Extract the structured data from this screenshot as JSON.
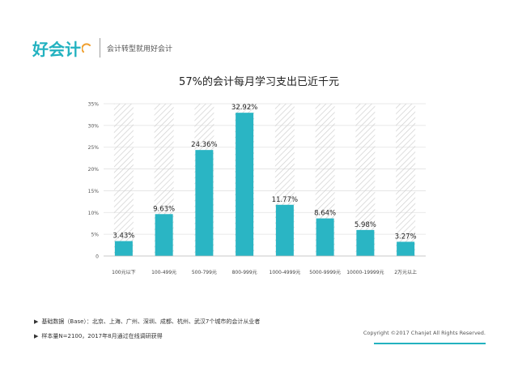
{
  "header": {
    "logo_text": "好会计",
    "slogan": "会计转型就用好会计"
  },
  "chart_data": {
    "type": "bar",
    "title": "57%的会计每月学习支出已近千元",
    "categories": [
      "100元以下",
      "100-499元",
      "500-799元",
      "800-999元",
      "1000-4999元",
      "5000-9999元",
      "10000-19999元",
      "2万元以上"
    ],
    "values": [
      3.43,
      9.63,
      24.36,
      32.92,
      11.77,
      8.64,
      5.98,
      3.27
    ],
    "value_labels": [
      "3.43%",
      "9.63%",
      "24.36%",
      "32.92%",
      "11.77%",
      "8.64%",
      "5.98%",
      "3.27%"
    ],
    "y_ticks": [
      0,
      5,
      10,
      15,
      20,
      25,
      30,
      35
    ],
    "y_tick_labels": [
      "0",
      "5%",
      "10%",
      "15%",
      "20%",
      "25%",
      "30%",
      "35%"
    ],
    "ylim": [
      0,
      35
    ],
    "xlabel": "",
    "ylabel": "",
    "grid": true,
    "bar_color": "#2ab5c4",
    "hatch_color": "#d0d0d0"
  },
  "footer": {
    "arrow": "▶",
    "line1": "基础数据（Base）：北京、上海、广州、深圳、成都、杭州、武汉7个城市的会计从业者",
    "line2": "样本量N=2100，2017年8月通过在线调研获得",
    "copyright": "Copyright ©2017 Chanjet All Rights Reserved."
  }
}
